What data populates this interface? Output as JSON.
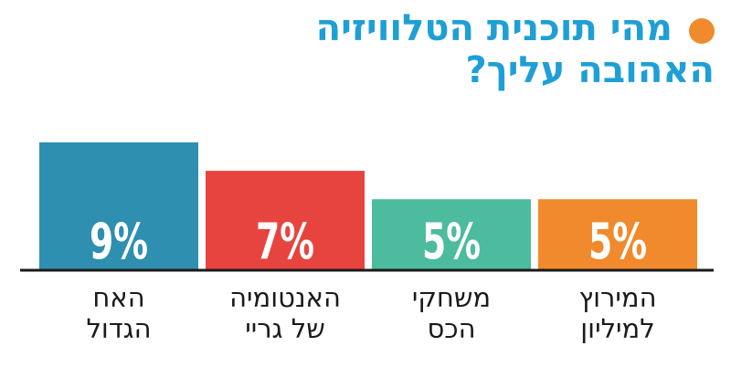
{
  "chart_data": {
    "type": "bar",
    "title_lines": [
      "מהי תוכנית הטלוויזיה",
      "האהובה עליך?"
    ],
    "categories": [
      [
        "האח",
        "הגדול"
      ],
      [
        "האנטומיה",
        "של גריי"
      ],
      [
        "משחקי",
        "הכס"
      ],
      [
        "המירוץ",
        "למיליון"
      ]
    ],
    "values": [
      9,
      7,
      5,
      5
    ],
    "value_labels": [
      "9%",
      "7%",
      "5%",
      "5%"
    ],
    "colors": [
      "#2e8fb0",
      "#e8443f",
      "#4dbb9e",
      "#f08a2c"
    ],
    "ylim": [
      0,
      9
    ],
    "grid": false,
    "accent_dot_color": "#f08a2c"
  }
}
